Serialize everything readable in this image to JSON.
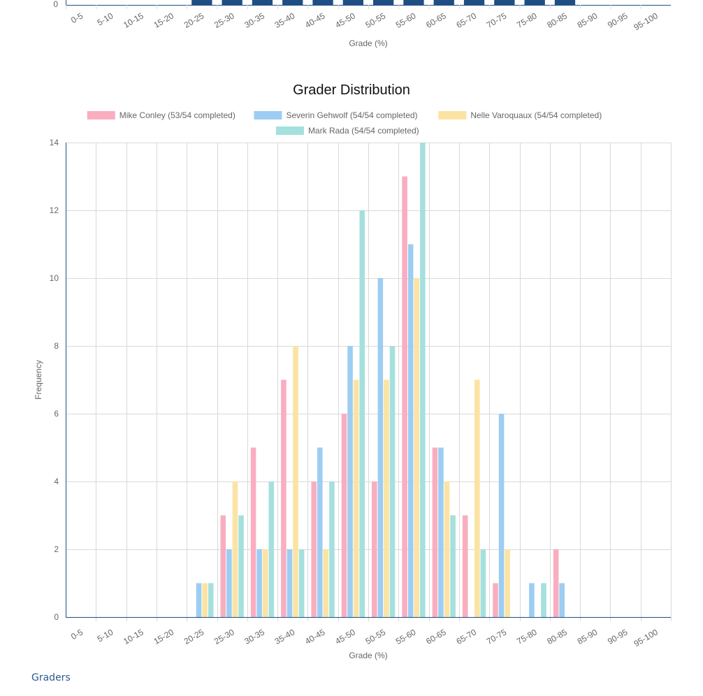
{
  "colors": {
    "top_bar": "#1f4e85",
    "axis": "#1f4e85",
    "grid": "#d9d9d9",
    "series": [
      "#f9aec0",
      "#9dcdf2",
      "#fbe3a3",
      "#a5e0de"
    ]
  },
  "top_chart_data": {
    "type": "bar",
    "categories": [
      "0-5",
      "5-10",
      "10-15",
      "15-20",
      "20-25",
      "25-30",
      "30-35",
      "35-40",
      "40-45",
      "45-50",
      "50-55",
      "55-60",
      "60-65",
      "65-70",
      "70-75",
      "75-80",
      "80-85",
      "85-90",
      "90-95",
      "95-100"
    ],
    "bars_visible_from_category": "20-25",
    "bars_visible_to_category": "80-85",
    "y_tick_visible": "0",
    "xlabel": "Grade (%)"
  },
  "chart_data": {
    "type": "bar",
    "title": "Grader Distribution",
    "xlabel": "Grade (%)",
    "ylabel": "Frequency",
    "ylim": [
      0,
      14
    ],
    "yticks": [
      0,
      2,
      4,
      6,
      8,
      10,
      12,
      14
    ],
    "grid": true,
    "legend_position": "top",
    "categories": [
      "0-5",
      "5-10",
      "10-15",
      "15-20",
      "20-25",
      "25-30",
      "30-35",
      "35-40",
      "40-45",
      "45-50",
      "50-55",
      "55-60",
      "60-65",
      "65-70",
      "70-75",
      "75-80",
      "80-85",
      "85-90",
      "90-95",
      "95-100"
    ],
    "series": [
      {
        "name": "Mike Conley (53/54 completed)",
        "values": [
          0,
          0,
          0,
          0,
          0,
          3,
          5,
          7,
          4,
          6,
          4,
          13,
          5,
          3,
          1,
          0,
          2,
          0,
          0,
          0
        ]
      },
      {
        "name": "Severin Gehwolf (54/54 completed)",
        "values": [
          0,
          0,
          0,
          0,
          1,
          2,
          2,
          2,
          5,
          8,
          10,
          11,
          5,
          0,
          6,
          1,
          1,
          0,
          0,
          0
        ]
      },
      {
        "name": "Nelle Varoquaux (54/54 completed)",
        "values": [
          0,
          0,
          0,
          0,
          1,
          4,
          2,
          8,
          2,
          7,
          7,
          10,
          4,
          7,
          2,
          0,
          0,
          0,
          0,
          0
        ]
      },
      {
        "name": "Mark Rada (54/54 completed)",
        "values": [
          0,
          0,
          0,
          0,
          1,
          3,
          4,
          2,
          4,
          12,
          8,
          14,
          3,
          2,
          0,
          1,
          0,
          0,
          0,
          0
        ]
      }
    ]
  },
  "footer": {
    "graders_link": "Graders"
  }
}
